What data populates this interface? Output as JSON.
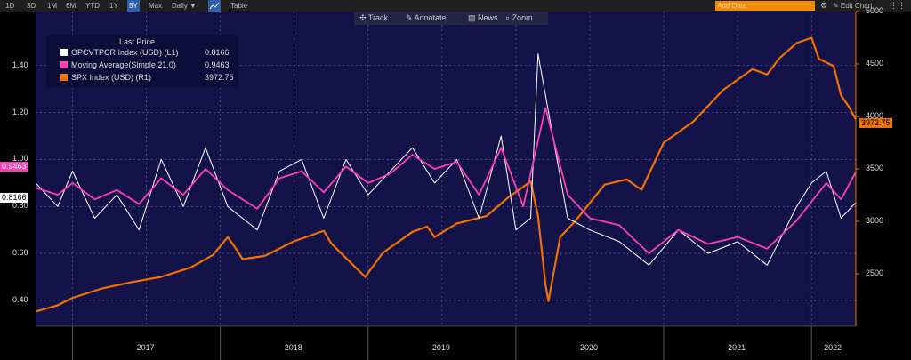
{
  "toolbar": {
    "periods": [
      "1D",
      "3D",
      "1M",
      "6M",
      "YTD",
      "1Y",
      "5Y",
      "Max"
    ],
    "selected_period": "5Y",
    "frequency": "Daily ▼",
    "table_label": "Table",
    "add_data_placeholder": "Add Data",
    "edit_chart_label": "✎ Edit Chart",
    "settings_icon": "gear-icon"
  },
  "actions": {
    "track": "Track",
    "annotate": "Annotate",
    "news": "News",
    "zoom": "Zoom"
  },
  "legend": {
    "title": "Last Price",
    "items": [
      {
        "label": "OPCVTPCR Index (USD)  (L1)",
        "value": "0.8166",
        "color": "#ffffff"
      },
      {
        "label": "Moving Average(Simple,21,0)",
        "value": "0.9463",
        "color": "#ff3fb5"
      },
      {
        "label": "SPX Index (USD)  (R1)",
        "value": "3972.75",
        "color": "#f07000"
      }
    ]
  },
  "tags": {
    "ma_value": "0.9463",
    "pcr_value": "0.8166",
    "spx_value": "3972.75"
  },
  "colors": {
    "plot_bg": "#13134a",
    "pcr": "#ffffff",
    "ma": "#ff3fb5",
    "spx": "#f07000"
  },
  "chart_data": {
    "type": "line",
    "x_axis_labels": [
      "2017",
      "2018",
      "2019",
      "2020",
      "2021",
      "2022"
    ],
    "x_range": [
      2016.75,
      2022.3
    ],
    "left_axis": {
      "ticks": [
        "0.40",
        "0.60",
        "0.80",
        "1.00",
        "1.20",
        "1.40"
      ],
      "range": [
        0.29,
        1.63
      ]
    },
    "right_axis": {
      "ticks": [
        "2500",
        "3000",
        "3500",
        "4000",
        "4500",
        "5000"
      ],
      "range": [
        2000,
        5000
      ]
    },
    "grid": true,
    "series": [
      {
        "name": "SPX Index (USD) (R1)",
        "axis": "right",
        "x": [
          2016.75,
          2016.9,
          2017.0,
          2017.2,
          2017.4,
          2017.6,
          2017.8,
          2017.95,
          2018.05,
          2018.1,
          2018.15,
          2018.3,
          2018.5,
          2018.7,
          2018.75,
          2018.85,
          2018.98,
          2019.1,
          2019.3,
          2019.4,
          2019.45,
          2019.6,
          2019.8,
          2019.95,
          2020.1,
          2020.15,
          2020.2,
          2020.22,
          2020.3,
          2020.4,
          2020.6,
          2020.75,
          2020.85,
          2021.0,
          2021.2,
          2021.4,
          2021.6,
          2021.7,
          2021.78,
          2021.9,
          2022.0,
          2022.05,
          2022.15,
          2022.2,
          2022.25,
          2022.3
        ],
        "values": [
          2140,
          2200,
          2270,
          2360,
          2420,
          2470,
          2560,
          2680,
          2850,
          2750,
          2640,
          2670,
          2810,
          2910,
          2790,
          2650,
          2470,
          2700,
          2900,
          2950,
          2850,
          2980,
          3050,
          3230,
          3380,
          3050,
          2400,
          2240,
          2850,
          3000,
          3350,
          3400,
          3300,
          3750,
          3950,
          4250,
          4450,
          4400,
          4550,
          4700,
          4750,
          4550,
          4480,
          4200,
          4100,
          3972.75
        ]
      },
      {
        "name": "Moving Average(Simple,21,0)",
        "axis": "left",
        "x": [
          2016.75,
          2016.9,
          2017.0,
          2017.15,
          2017.3,
          2017.45,
          2017.6,
          2017.75,
          2017.9,
          2018.05,
          2018.25,
          2018.4,
          2018.55,
          2018.7,
          2018.85,
          2019.0,
          2019.15,
          2019.3,
          2019.45,
          2019.6,
          2019.75,
          2019.9,
          2020.05,
          2020.2,
          2020.35,
          2020.5,
          2020.7,
          2020.9,
          2021.1,
          2021.3,
          2021.5,
          2021.7,
          2021.9,
          2022.0,
          2022.1,
          2022.2,
          2022.3
        ],
        "values": [
          0.88,
          0.85,
          0.9,
          0.83,
          0.87,
          0.81,
          0.92,
          0.85,
          0.96,
          0.87,
          0.79,
          0.92,
          0.95,
          0.86,
          0.97,
          0.9,
          0.94,
          1.02,
          0.96,
          0.99,
          0.85,
          1.05,
          0.8,
          1.22,
          0.85,
          0.75,
          0.72,
          0.6,
          0.7,
          0.64,
          0.67,
          0.62,
          0.74,
          0.82,
          0.9,
          0.83,
          0.9463
        ]
      },
      {
        "name": "OPCVTPCR Index (USD) (L1)",
        "axis": "left",
        "x": [
          2016.75,
          2016.9,
          2017.0,
          2017.15,
          2017.3,
          2017.45,
          2017.6,
          2017.75,
          2017.9,
          2018.05,
          2018.25,
          2018.4,
          2018.55,
          2018.7,
          2018.85,
          2019.0,
          2019.15,
          2019.3,
          2019.45,
          2019.6,
          2019.75,
          2019.9,
          2020.0,
          2020.1,
          2020.15,
          2020.25,
          2020.35,
          2020.5,
          2020.7,
          2020.9,
          2021.1,
          2021.3,
          2021.5,
          2021.7,
          2021.9,
          2022.0,
          2022.1,
          2022.2,
          2022.3
        ],
        "values": [
          0.9,
          0.8,
          0.95,
          0.75,
          0.85,
          0.7,
          1.0,
          0.8,
          1.05,
          0.8,
          0.7,
          0.95,
          1.0,
          0.75,
          1.0,
          0.85,
          0.95,
          1.05,
          0.9,
          1.0,
          0.75,
          1.1,
          0.7,
          0.75,
          1.45,
          1.1,
          0.75,
          0.7,
          0.65,
          0.55,
          0.7,
          0.6,
          0.65,
          0.55,
          0.8,
          0.9,
          0.95,
          0.75,
          0.8166
        ]
      }
    ]
  }
}
